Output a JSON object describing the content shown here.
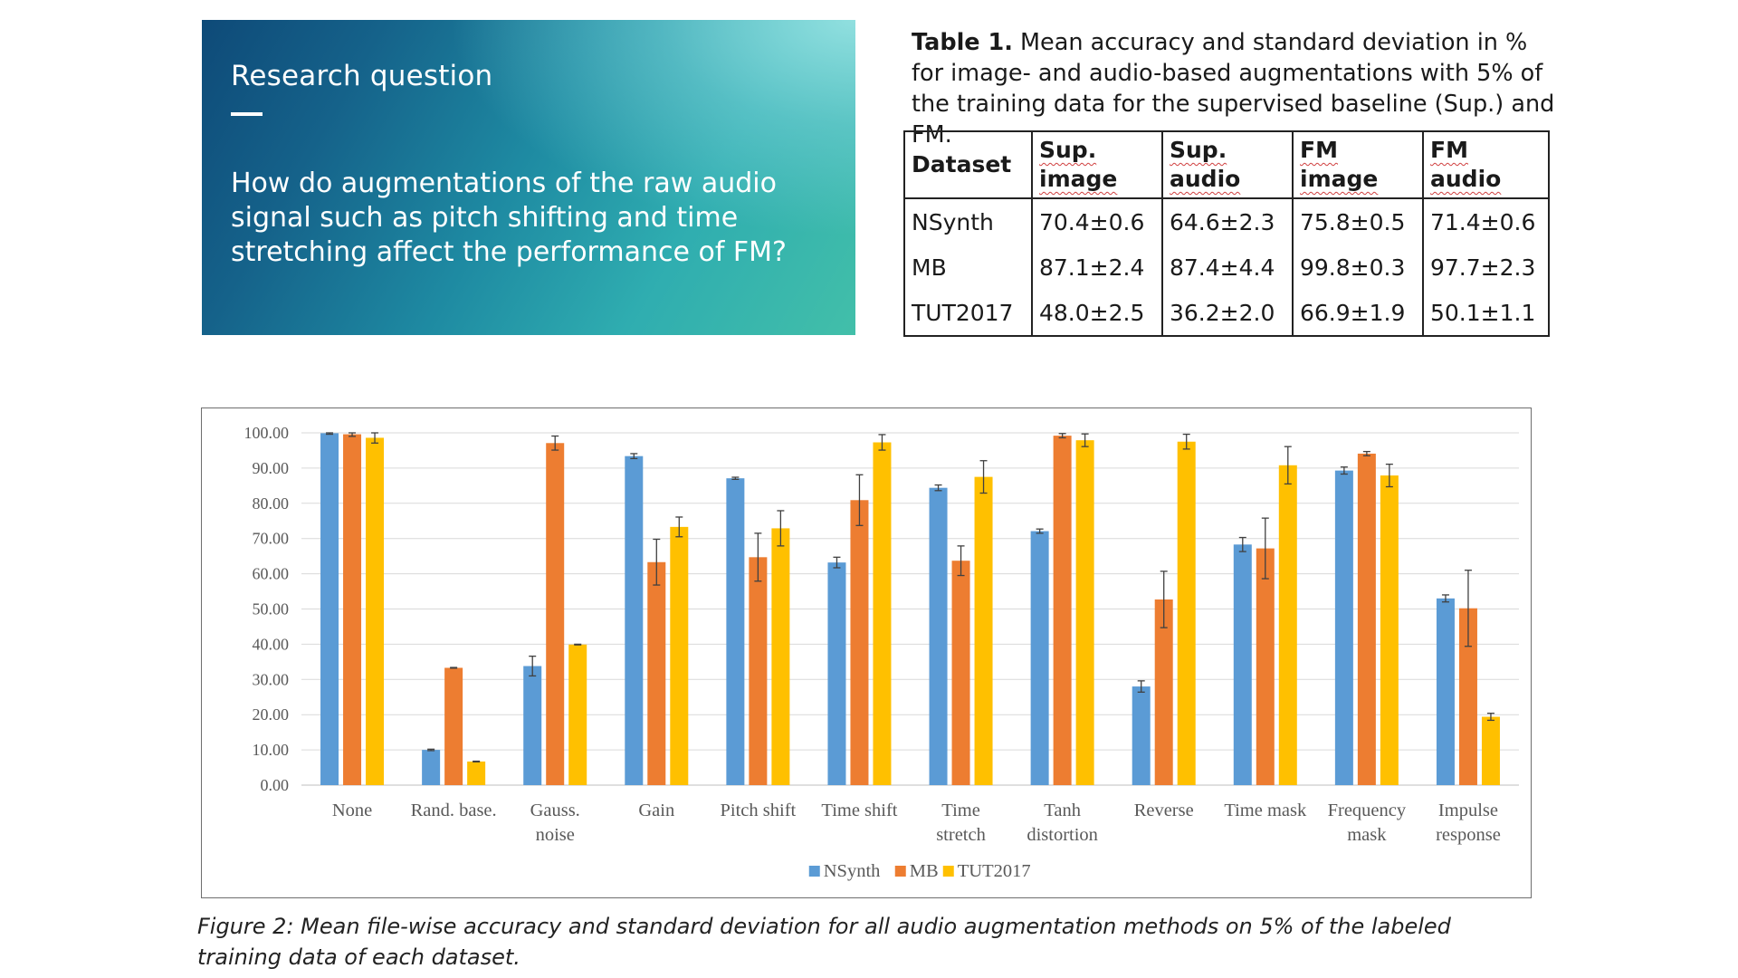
{
  "research": {
    "title": "Research question",
    "question": "How do augmentations of the raw audio signal such as pitch shifting and time stretching affect the performance of FM?"
  },
  "table": {
    "caption_label": "Table 1.",
    "caption_text": "Mean accuracy and standard deviation in % for image- and audio-based augmentations with 5% of the training data for the supervised baseline (Sup.) and FM.",
    "headers": [
      "Dataset",
      "Sup. image",
      "Sup. audio",
      "FM image",
      "FM audio"
    ],
    "rows": [
      [
        "NSynth",
        "70.4±0.6",
        "64.6±2.3",
        "75.8±0.5",
        "71.4±0.6"
      ],
      [
        "MB",
        "87.1±2.4",
        "87.4±4.4",
        "99.8±0.3",
        "97.7±2.3"
      ],
      [
        "TUT2017",
        "48.0±2.5",
        "36.2±2.0",
        "66.9±1.9",
        "50.1±1.1"
      ]
    ]
  },
  "figure_caption": "Figure 2: Mean file-wise accuracy and standard deviation for all audio augmentation methods on 5% of the labeled training data of each dataset.",
  "chart_data": {
    "type": "bar",
    "title": "",
    "xlabel": "",
    "ylabel": "",
    "ylim": [
      0,
      100
    ],
    "yticks": [
      "0.00",
      "10.00",
      "20.00",
      "30.00",
      "40.00",
      "50.00",
      "60.00",
      "70.00",
      "80.00",
      "90.00",
      "100.00"
    ],
    "grid": true,
    "legend_position": "bottom",
    "categories": [
      [
        "None"
      ],
      [
        "Rand. base."
      ],
      [
        "Gauss.",
        "noise"
      ],
      [
        "Gain"
      ],
      [
        "Pitch shift"
      ],
      [
        "Time shift"
      ],
      [
        "Time",
        "stretch"
      ],
      [
        "Tanh",
        "distortion"
      ],
      [
        "Reverse"
      ],
      [
        "Time mask"
      ],
      [
        "Frequency",
        "mask"
      ],
      [
        "Impulse",
        "response"
      ]
    ],
    "series": [
      {
        "name": "NSynth",
        "color": "#5b9bd5",
        "values": [
          99.9,
          10.0,
          33.8,
          93.4,
          87.1,
          63.2,
          84.4,
          72.1,
          28.0,
          68.3,
          89.3,
          53.0
        ],
        "errors": [
          0.3,
          0.2,
          2.8,
          0.7,
          0.3,
          1.5,
          0.8,
          0.6,
          1.6,
          2.0,
          1.0,
          1.0
        ]
      },
      {
        "name": "MB",
        "color": "#ed7d31",
        "values": [
          99.6,
          33.3,
          97.1,
          63.3,
          64.7,
          80.9,
          63.7,
          99.2,
          52.7,
          67.2,
          94.1,
          50.2
        ],
        "errors": [
          0.6,
          0.1,
          2.0,
          6.5,
          6.8,
          7.2,
          4.2,
          0.6,
          8.0,
          8.6,
          0.6,
          10.8
        ]
      },
      {
        "name": "TUT2017",
        "color": "#ffc000",
        "values": [
          98.6,
          6.7,
          39.9,
          73.3,
          72.9,
          97.3,
          87.5,
          97.9,
          97.5,
          90.8,
          87.9,
          19.4
        ],
        "errors": [
          1.5,
          0.1,
          0.1,
          2.8,
          5.0,
          2.2,
          4.6,
          1.8,
          2.1,
          5.3,
          3.2,
          1.0
        ]
      }
    ]
  }
}
